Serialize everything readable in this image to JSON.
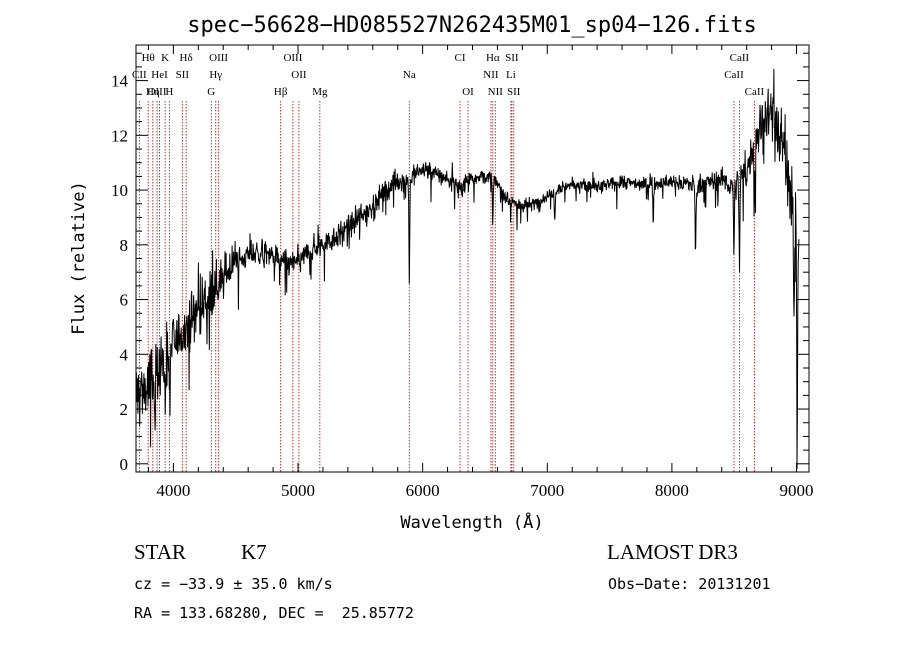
{
  "chart_data": {
    "type": "line",
    "title": "spec−56628−HD085527N262435M01_sp04−126.fits",
    "xlabel": "Wavelength (Å)",
    "ylabel": "Flux (relative)",
    "xlim": [
      3700,
      9100
    ],
    "ylim": [
      -0.3,
      15.3
    ],
    "x_ticks": [
      {
        "value": 4000,
        "label": "4000"
      },
      {
        "value": 5000,
        "label": "5000"
      },
      {
        "value": 6000,
        "label": "6000"
      },
      {
        "value": 7000,
        "label": "7000"
      },
      {
        "value": 8000,
        "label": "8000"
      },
      {
        "value": 9000,
        "label": "9000"
      }
    ],
    "y_ticks": [
      {
        "value": 0,
        "label": "0"
      },
      {
        "value": 2,
        "label": "2"
      },
      {
        "value": 4,
        "label": "4"
      },
      {
        "value": 6,
        "label": "6"
      },
      {
        "value": 8,
        "label": "8"
      },
      {
        "value": 10,
        "label": "10"
      },
      {
        "value": 12,
        "label": "12"
      },
      {
        "value": 14,
        "label": "14"
      }
    ],
    "spectral_lines": [
      {
        "name": "Hθ",
        "wavelength": 3798,
        "row": 0
      },
      {
        "name": "K",
        "wavelength": 3934,
        "row": 0
      },
      {
        "name": "Hδ",
        "wavelength": 4102,
        "row": 0
      },
      {
        "name": "OIII",
        "wavelength": 4363,
        "row": 0
      },
      {
        "name": "OIII",
        "wavelength": 4959,
        "row": 0
      },
      {
        "name": "CI",
        "wavelength": 6300,
        "row": 0
      },
      {
        "name": "Hα",
        "wavelength": 6563,
        "row": 0
      },
      {
        "name": "SII",
        "wavelength": 6716,
        "row": 0
      },
      {
        "name": "CaII",
        "wavelength": 8542,
        "row": 0
      },
      {
        "name": "CII",
        "wavelength": 3727,
        "row": 1
      },
      {
        "name": "HeI",
        "wavelength": 3889,
        "row": 1
      },
      {
        "name": "SII",
        "wavelength": 4072,
        "row": 1
      },
      {
        "name": "Hγ",
        "wavelength": 4340,
        "row": 1
      },
      {
        "name": "OII",
        "wavelength": 5007,
        "row": 1
      },
      {
        "name": "Na",
        "wavelength": 5893,
        "row": 1
      },
      {
        "name": "NII",
        "wavelength": 6548,
        "row": 1
      },
      {
        "name": "Li",
        "wavelength": 6708,
        "row": 1
      },
      {
        "name": "CaII",
        "wavelength": 8498,
        "row": 1
      },
      {
        "name": "OIII",
        "wavelength": 3869,
        "row": 2
      },
      {
        "name": "Hη",
        "wavelength": 3835,
        "row": 2
      },
      {
        "name": "H",
        "wavelength": 3968,
        "row": 2
      },
      {
        "name": "G",
        "wavelength": 4304,
        "row": 2
      },
      {
        "name": "Hβ",
        "wavelength": 4861,
        "row": 2
      },
      {
        "name": "Mg",
        "wavelength": 5175,
        "row": 2
      },
      {
        "name": "OI",
        "wavelength": 6364,
        "row": 2
      },
      {
        "name": "NII",
        "wavelength": 6583,
        "row": 2
      },
      {
        "name": "SII",
        "wavelength": 6731,
        "row": 2
      },
      {
        "name": "CaII",
        "wavelength": 8662,
        "row": 2
      }
    ],
    "series": [
      {
        "name": "flux",
        "continuum": [
          [
            3700,
            2.5
          ],
          [
            3800,
            2.8
          ],
          [
            3900,
            3.6
          ],
          [
            4000,
            4.4
          ],
          [
            4100,
            5.0
          ],
          [
            4200,
            5.7
          ],
          [
            4300,
            6.2
          ],
          [
            4400,
            6.8
          ],
          [
            4500,
            7.4
          ],
          [
            4600,
            7.6
          ],
          [
            4700,
            7.7
          ],
          [
            4800,
            7.6
          ],
          [
            4900,
            7.3
          ],
          [
            5000,
            7.4
          ],
          [
            5100,
            7.8
          ],
          [
            5200,
            8.0
          ],
          [
            5300,
            8.3
          ],
          [
            5400,
            8.6
          ],
          [
            5500,
            9.0
          ],
          [
            5600,
            9.4
          ],
          [
            5700,
            10.0
          ],
          [
            5800,
            10.3
          ],
          [
            5900,
            10.4
          ],
          [
            6000,
            10.8
          ],
          [
            6100,
            10.6
          ],
          [
            6200,
            10.4
          ],
          [
            6300,
            10.1
          ],
          [
            6400,
            10.5
          ],
          [
            6500,
            10.5
          ],
          [
            6600,
            10.2
          ],
          [
            6700,
            9.6
          ],
          [
            6800,
            9.4
          ],
          [
            6900,
            9.5
          ],
          [
            7000,
            9.8
          ],
          [
            7100,
            10.1
          ],
          [
            7200,
            10.2
          ],
          [
            7400,
            10.1
          ],
          [
            7600,
            10.3
          ],
          [
            7800,
            10.2
          ],
          [
            8000,
            10.3
          ],
          [
            8200,
            10.2
          ],
          [
            8400,
            10.4
          ],
          [
            8500,
            10.1
          ],
          [
            8600,
            10.7
          ],
          [
            8700,
            12.3
          ],
          [
            8800,
            13.0
          ],
          [
            8900,
            11.5
          ],
          [
            8950,
            10.0
          ],
          [
            9000,
            8.5
          ]
        ],
        "noise": [
          [
            3700,
            1.6
          ],
          [
            4000,
            1.0
          ],
          [
            4300,
            0.9
          ],
          [
            4600,
            0.45
          ],
          [
            5000,
            0.45
          ],
          [
            5500,
            0.5
          ],
          [
            6000,
            0.35
          ],
          [
            6500,
            0.35
          ],
          [
            7000,
            0.25
          ],
          [
            8000,
            0.25
          ],
          [
            8500,
            0.45
          ],
          [
            8700,
            1.0
          ],
          [
            9000,
            1.3
          ]
        ],
        "absorption_features": [
          {
            "wavelength": 3850,
            "depth": 1.8
          },
          {
            "wavelength": 3934,
            "depth": 2.0
          },
          {
            "wavelength": 3968,
            "depth": 1.8
          },
          {
            "wavelength": 5893,
            "depth": 3.5
          },
          {
            "wavelength": 6563,
            "depth": 1.4
          },
          {
            "wavelength": 7060,
            "depth": 1.0
          },
          {
            "wavelength": 7850,
            "depth": 1.4
          },
          {
            "wavelength": 8190,
            "depth": 2.6
          },
          {
            "wavelength": 8498,
            "depth": 2.5
          },
          {
            "wavelength": 8542,
            "depth": 3.4
          },
          {
            "wavelength": 8662,
            "depth": 2.3
          },
          {
            "wavelength": 8980,
            "depth": 3.0
          },
          {
            "wavelength": 9005,
            "depth": 8.0
          }
        ]
      }
    ]
  },
  "info": {
    "object_class": "STAR",
    "subclass": "K7",
    "survey": "LAMOST DR3",
    "redshift": "cz = −33.9 ± 35.0 km/s",
    "obs_date": "Obs−Date: 20131201",
    "coords": "RA = 133.68280, DEC =  25.85772"
  }
}
